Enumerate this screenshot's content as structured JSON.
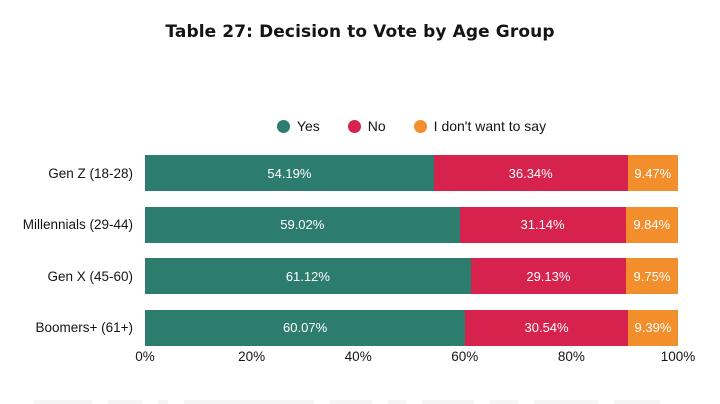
{
  "title": "Table 27: Decision to Vote by Age Group",
  "chart_data": {
    "type": "bar",
    "orientation": "horizontal",
    "stacked": true,
    "unit": "%",
    "title": "Table 27: Decision to Vote by Age Group",
    "categories": [
      "Gen Z (18-28)",
      "Millennials (29-44)",
      "Gen X (45-60)",
      "Boomers+ (61+)"
    ],
    "series": [
      {
        "name": "Yes",
        "color": "#2D7D6E",
        "values": [
          54.19,
          59.02,
          61.12,
          60.07
        ],
        "labels": [
          "54.19%",
          "59.02%",
          "61.12%",
          "60.07%"
        ]
      },
      {
        "name": "No",
        "color": "#D6224C",
        "values": [
          36.34,
          31.14,
          29.13,
          30.54
        ],
        "labels": [
          "36.34%",
          "31.14%",
          "29.13%",
          "30.54%"
        ]
      },
      {
        "name": "I don't want to say",
        "color": "#F28E2B",
        "values": [
          9.47,
          9.84,
          9.75,
          9.39
        ],
        "labels": [
          "9.47%",
          "9.84%",
          "9.75%",
          "9.39%"
        ]
      }
    ],
    "xticks": [
      "0%",
      "20%",
      "40%",
      "60%",
      "80%",
      "100%"
    ],
    "xlim": [
      0,
      100
    ],
    "legend_position": "top-center",
    "grid": false
  }
}
